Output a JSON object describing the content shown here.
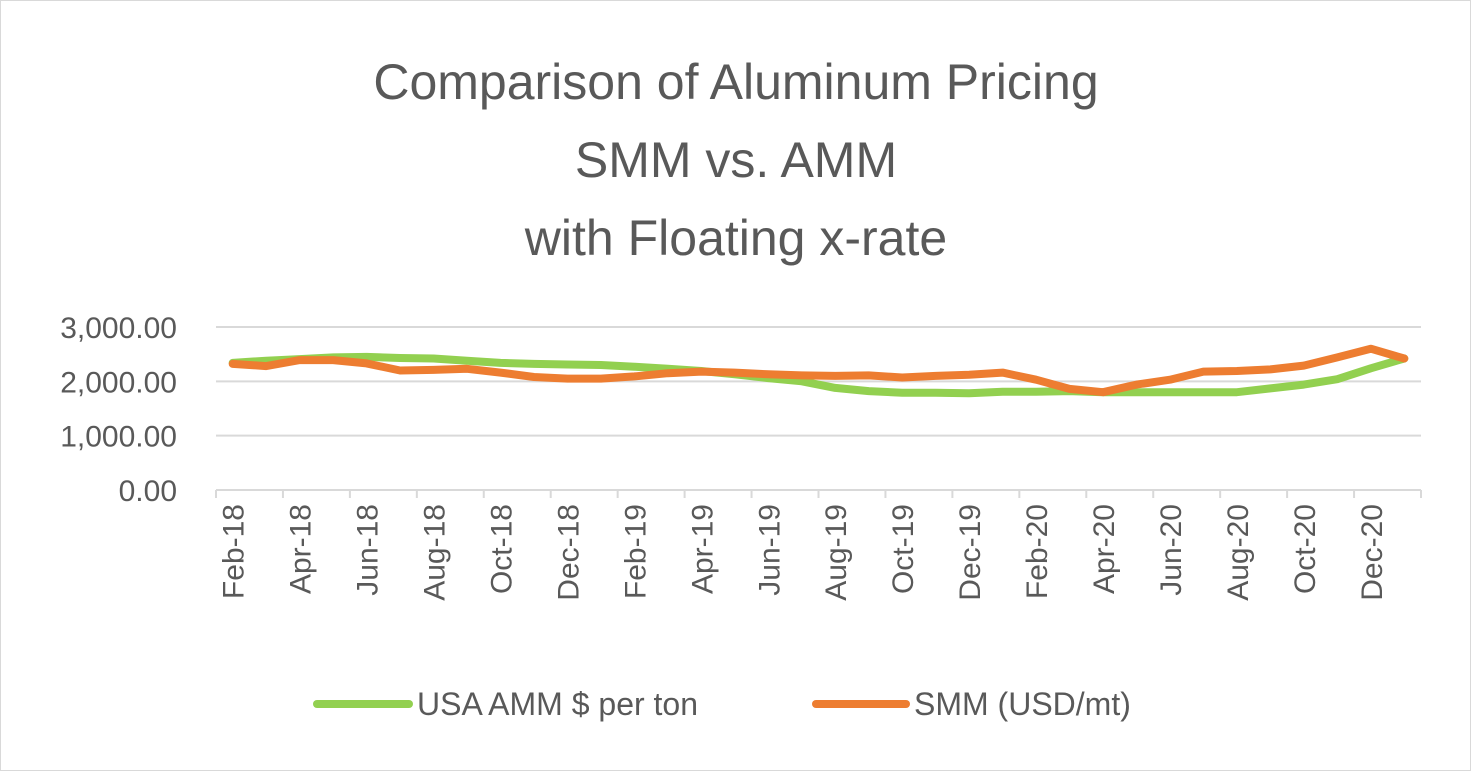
{
  "chart_data": {
    "type": "line",
    "title_lines": [
      "Comparison of Aluminum Pricing",
      "SMM vs. AMM",
      "with Floating x-rate"
    ],
    "xlabel": "",
    "ylabel": "",
    "ylim": [
      0,
      3000
    ],
    "yticks": [
      "0.00",
      "1,000.00",
      "2,000.00",
      "3,000.00"
    ],
    "grid": true,
    "legend_position": "bottom",
    "x": [
      "Feb-18",
      "Mar-18",
      "Apr-18",
      "May-18",
      "Jun-18",
      "Jul-18",
      "Aug-18",
      "Sep-18",
      "Oct-18",
      "Nov-18",
      "Dec-18",
      "Jan-19",
      "Feb-19",
      "Mar-19",
      "Apr-19",
      "May-19",
      "Jun-19",
      "Jul-19",
      "Aug-19",
      "Sep-19",
      "Oct-19",
      "Nov-19",
      "Dec-19",
      "Jan-20",
      "Feb-20",
      "Mar-20",
      "Apr-20",
      "May-20",
      "Jun-20",
      "Jul-20",
      "Aug-20",
      "Sep-20",
      "Oct-20",
      "Nov-20",
      "Dec-20",
      "Jan-21"
    ],
    "x_tick_labels": [
      "Feb-18",
      "Apr-18",
      "Jun-18",
      "Aug-18",
      "Oct-18",
      "Dec-18",
      "Feb-19",
      "Apr-19",
      "Jun-19",
      "Aug-19",
      "Oct-19",
      "Dec-19",
      "Feb-20",
      "Apr-20",
      "Jun-20",
      "Aug-20",
      "Oct-20",
      "Dec-20"
    ],
    "series": [
      {
        "name": "USA AMM $ per ton",
        "color": "#92d050",
        "values": [
          2340,
          2380,
          2410,
          2440,
          2450,
          2430,
          2420,
          2380,
          2340,
          2320,
          2310,
          2300,
          2270,
          2230,
          2190,
          2130,
          2060,
          2000,
          1880,
          1820,
          1790,
          1790,
          1780,
          1810,
          1810,
          1820,
          1800,
          1800,
          1800,
          1800,
          1800,
          1870,
          1940,
          2040,
          2240,
          2420
        ]
      },
      {
        "name": "SMM (USD/mt)",
        "color": "#ed7d31",
        "values": [
          2320,
          2280,
          2390,
          2390,
          2330,
          2200,
          2210,
          2230,
          2160,
          2080,
          2050,
          2050,
          2090,
          2150,
          2180,
          2160,
          2130,
          2110,
          2100,
          2110,
          2070,
          2100,
          2120,
          2160,
          2030,
          1860,
          1800,
          1940,
          2030,
          2180,
          2190,
          2220,
          2290,
          2440,
          2600,
          2420
        ]
      }
    ]
  }
}
